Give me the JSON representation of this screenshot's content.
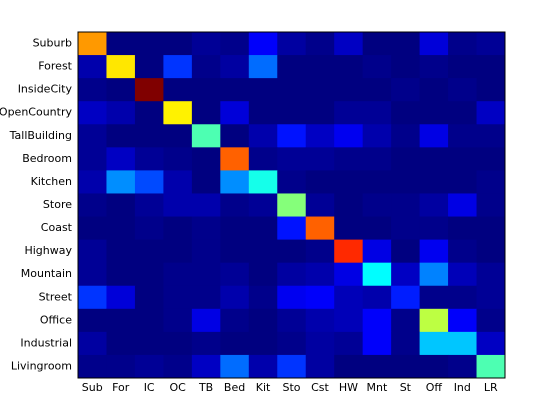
{
  "chart_data": {
    "type": "heatmap",
    "colormap": "jet",
    "rows": [
      "Suburb",
      "Forest",
      "InsideCity",
      "OpenCountry",
      "TallBuilding",
      "Bedroom",
      "Kitchen",
      "Store",
      "Coast",
      "Highway",
      "Mountain",
      "Street",
      "Office",
      "Industrial",
      "Livingroom"
    ],
    "columns": [
      "Sub",
      "For",
      "IC",
      "OC",
      "TB",
      "Bed",
      "Kit",
      "Sto",
      "Cst",
      "HW",
      "Mnt",
      "St",
      "Off",
      "Ind",
      "LR"
    ],
    "values": [
      [
        0.7,
        0.04,
        0.04,
        0.04,
        0.06,
        0.05,
        0.15,
        0.07,
        0.05,
        0.1,
        0.04,
        0.04,
        0.12,
        0.05,
        0.06
      ],
      [
        0.08,
        0.63,
        0.04,
        0.2,
        0.05,
        0.07,
        0.25,
        0.04,
        0.04,
        0.04,
        0.05,
        0.04,
        0.05,
        0.04,
        0.04
      ],
      [
        0.05,
        0.04,
        0.95,
        0.04,
        0.04,
        0.04,
        0.04,
        0.04,
        0.04,
        0.04,
        0.04,
        0.05,
        0.04,
        0.05,
        0.04
      ],
      [
        0.1,
        0.08,
        0.04,
        0.62,
        0.04,
        0.12,
        0.04,
        0.04,
        0.04,
        0.06,
        0.06,
        0.04,
        0.04,
        0.04,
        0.1
      ],
      [
        0.06,
        0.04,
        0.04,
        0.04,
        0.45,
        0.04,
        0.08,
        0.17,
        0.1,
        0.14,
        0.08,
        0.05,
        0.13,
        0.05,
        0.05
      ],
      [
        0.06,
        0.1,
        0.06,
        0.05,
        0.04,
        0.75,
        0.05,
        0.06,
        0.06,
        0.05,
        0.05,
        0.04,
        0.04,
        0.04,
        0.04
      ],
      [
        0.08,
        0.28,
        0.22,
        0.08,
        0.04,
        0.28,
        0.4,
        0.05,
        0.04,
        0.04,
        0.04,
        0.04,
        0.04,
        0.04,
        0.05
      ],
      [
        0.05,
        0.04,
        0.06,
        0.08,
        0.08,
        0.05,
        0.06,
        0.5,
        0.06,
        0.04,
        0.05,
        0.05,
        0.07,
        0.13,
        0.05
      ],
      [
        0.04,
        0.04,
        0.05,
        0.04,
        0.05,
        0.04,
        0.04,
        0.17,
        0.75,
        0.04,
        0.04,
        0.05,
        0.05,
        0.04,
        0.04
      ],
      [
        0.06,
        0.04,
        0.04,
        0.04,
        0.05,
        0.04,
        0.04,
        0.04,
        0.05,
        0.8,
        0.13,
        0.04,
        0.14,
        0.05,
        0.04
      ],
      [
        0.06,
        0.04,
        0.04,
        0.05,
        0.05,
        0.06,
        0.04,
        0.07,
        0.08,
        0.13,
        0.38,
        0.1,
        0.27,
        0.09,
        0.06
      ],
      [
        0.2,
        0.12,
        0.04,
        0.05,
        0.05,
        0.08,
        0.05,
        0.14,
        0.15,
        0.09,
        0.08,
        0.18,
        0.05,
        0.05,
        0.06
      ],
      [
        0.04,
        0.04,
        0.04,
        0.05,
        0.13,
        0.05,
        0.04,
        0.06,
        0.08,
        0.09,
        0.15,
        0.05,
        0.55,
        0.15,
        0.05
      ],
      [
        0.07,
        0.04,
        0.04,
        0.04,
        0.05,
        0.04,
        0.04,
        0.05,
        0.07,
        0.06,
        0.15,
        0.05,
        0.33,
        0.33,
        0.1
      ],
      [
        0.05,
        0.05,
        0.06,
        0.05,
        0.1,
        0.25,
        0.08,
        0.2,
        0.07,
        0.04,
        0.04,
        0.04,
        0.04,
        0.05,
        0.45
      ]
    ]
  }
}
